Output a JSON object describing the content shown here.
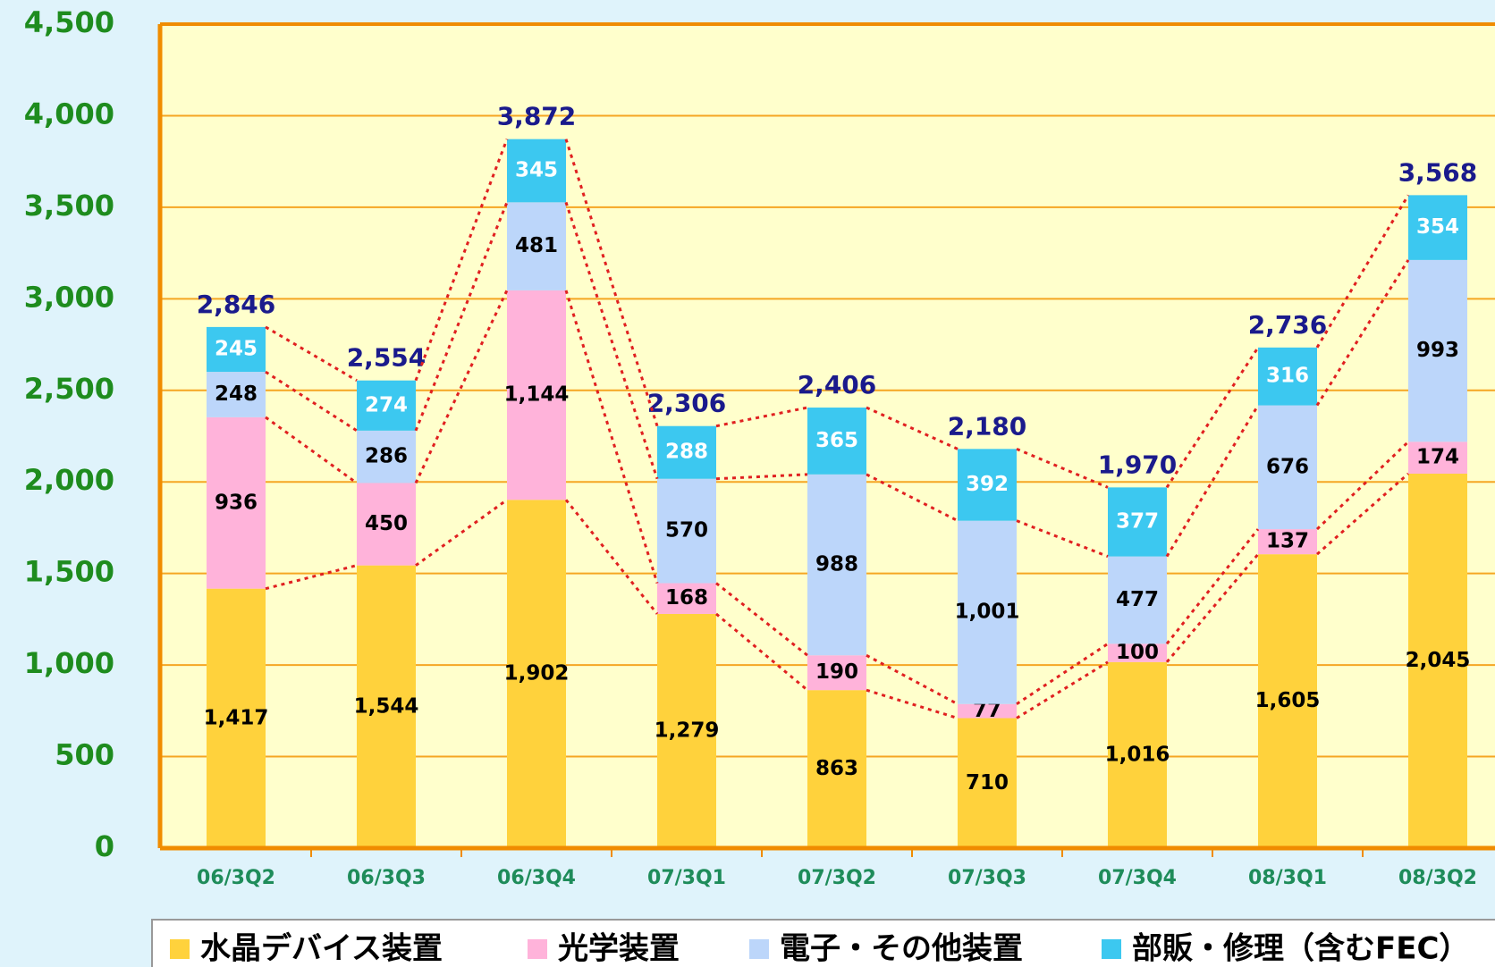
{
  "chart_data": {
    "type": "bar",
    "stacked": true,
    "categories": [
      "06/3Q2",
      "06/3Q3",
      "06/3Q4",
      "07/3Q1",
      "07/3Q2",
      "07/3Q3",
      "07/3Q4",
      "08/3Q1",
      "08/3Q2"
    ],
    "series": [
      {
        "name": "水晶デバイス装置",
        "color": "#ffd23c",
        "label_color": "#000000",
        "values": [
          1417,
          1544,
          1902,
          1279,
          863,
          710,
          1016,
          1605,
          2045
        ],
        "value_labels": [
          "1,417",
          "1,544",
          "1,902",
          "1,279",
          "863",
          "710",
          "1,016",
          "1,605",
          "2,045"
        ]
      },
      {
        "name": "光学装置",
        "color": "#ffb3da",
        "label_color": "#000000",
        "values": [
          936,
          450,
          1144,
          168,
          190,
          77,
          100,
          137,
          174
        ],
        "value_labels": [
          "936",
          "450",
          "1,144",
          "168",
          "190",
          "77",
          "100",
          "137",
          "174"
        ]
      },
      {
        "name": "電子・その他装置",
        "color": "#bcd6fa",
        "label_color": "#000000",
        "values": [
          248,
          286,
          481,
          570,
          988,
          1001,
          477,
          676,
          993
        ],
        "value_labels": [
          "248",
          "286",
          "481",
          "570",
          "988",
          "1,001",
          "477",
          "676",
          "993"
        ]
      },
      {
        "name": "部販・修理（含むFEC）",
        "color": "#3cc8f0",
        "label_color": "#ffffff",
        "values": [
          245,
          274,
          345,
          288,
          365,
          392,
          377,
          316,
          354
        ],
        "value_labels": [
          "245",
          "274",
          "345",
          "288",
          "365",
          "392",
          "377",
          "316",
          "354"
        ]
      }
    ],
    "totals": [
      2846,
      2554,
      3872,
      2306,
      2406,
      2180,
      1970,
      2736,
      3568
    ],
    "total_labels": [
      "2,846",
      "2,554",
      "3,872",
      "2,306",
      "2,406",
      "2,180",
      "1,970",
      "2,736",
      "3,568"
    ],
    "ylim": [
      0,
      4500
    ],
    "yticks": [
      0,
      500,
      {
        "value": 1000,
        "label": "1,000"
      },
      {
        "value": 1500,
        "label": "1,500"
      },
      {
        "value": 2000,
        "label": "2,000"
      },
      {
        "value": 2500,
        "label": "2,500"
      },
      {
        "value": 3000,
        "label": "3,000"
      },
      {
        "value": 3500,
        "label": "3,500"
      },
      {
        "value": 4000,
        "label": "4,000"
      },
      {
        "value": 4500,
        "label": "4,500"
      }
    ],
    "grid": true,
    "legend": "bottom"
  }
}
